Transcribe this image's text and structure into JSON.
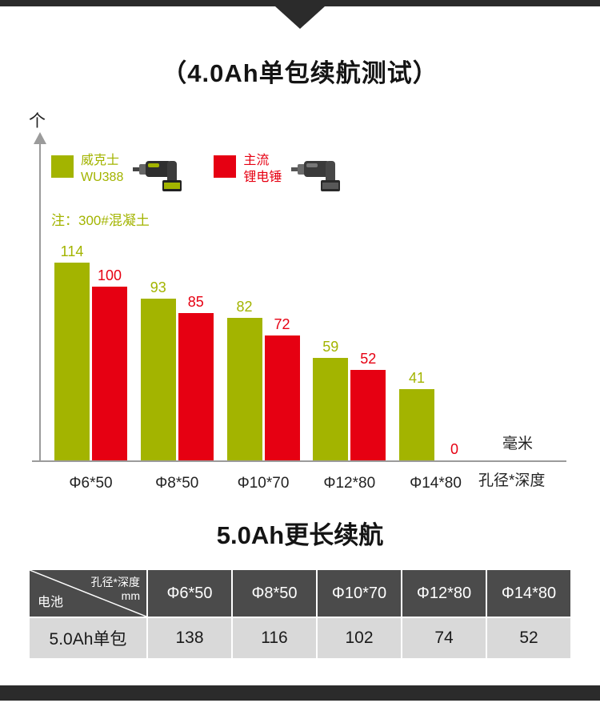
{
  "page": {
    "title": "（4.0Ah单包续航测试）",
    "section2_title": "5.0Ah更长续航"
  },
  "colors": {
    "brand_green": "#a3b400",
    "competitor_red": "#e60012",
    "dark_strip": "#2b2b2b",
    "axis_gray": "#9b9b9b",
    "table_header_bg": "#4b4b4b",
    "table_row_bg": "#d9d9d9"
  },
  "icons": {
    "legend1": "rotary-hammer-wu388-icon",
    "legend2": "rotary-hammer-competitor-icon"
  },
  "chart_data": {
    "type": "bar",
    "title": "（4.0Ah单包续航测试）",
    "y_axis_label": "个",
    "x_axis_label": "孔径*深度",
    "x_axis_unit": "毫米",
    "note": "注：300#混凝土",
    "categories": [
      "Φ6*50",
      "Φ8*50",
      "Φ10*70",
      "Φ12*80",
      "Φ14*80"
    ],
    "series": [
      {
        "name": "威克士 WU388",
        "label_lines": [
          "威克士",
          "WU388"
        ],
        "color": "#a3b400",
        "values": [
          114,
          93,
          82,
          59,
          41
        ]
      },
      {
        "name": "主流 锂电锤",
        "label_lines": [
          "主流",
          "锂电锤"
        ],
        "color": "#e60012",
        "values": [
          100,
          85,
          72,
          52,
          0
        ]
      }
    ],
    "ylim": [
      0,
      120
    ],
    "grid": false,
    "legend_position": "top-left"
  },
  "table": {
    "corner_top": "孔径*深度",
    "corner_top_unit": "mm",
    "corner_bottom": "电池",
    "columns": [
      "Φ6*50",
      "Φ8*50",
      "Φ10*70",
      "Φ12*80",
      "Φ14*80"
    ],
    "rows": [
      {
        "label": "5.0Ah单包",
        "values": [
          "138",
          "116",
          "102",
          "74",
          "52"
        ]
      }
    ]
  }
}
